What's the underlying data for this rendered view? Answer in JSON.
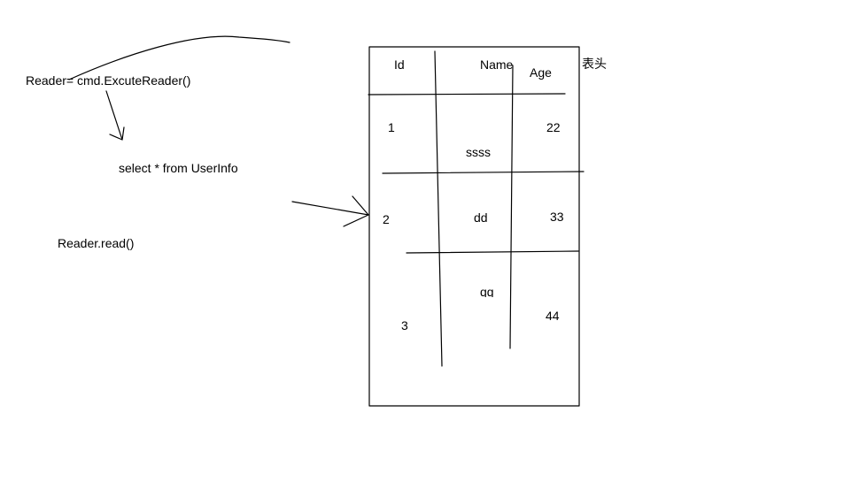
{
  "left": {
    "reader_assign": "Reader= cmd.ExcuteReader()",
    "sql": "select * from UserInfo",
    "reader_read": "Reader.read()"
  },
  "table": {
    "headers": {
      "id": "Id",
      "name": "Name",
      "age": "Age"
    },
    "header_note": "表头",
    "rows": [
      {
        "id": "1",
        "name": "ssss",
        "age": "22"
      },
      {
        "id": "2",
        "name": "dd",
        "age": "33"
      },
      {
        "id": "3",
        "name": "qq",
        "age": "44"
      }
    ]
  }
}
